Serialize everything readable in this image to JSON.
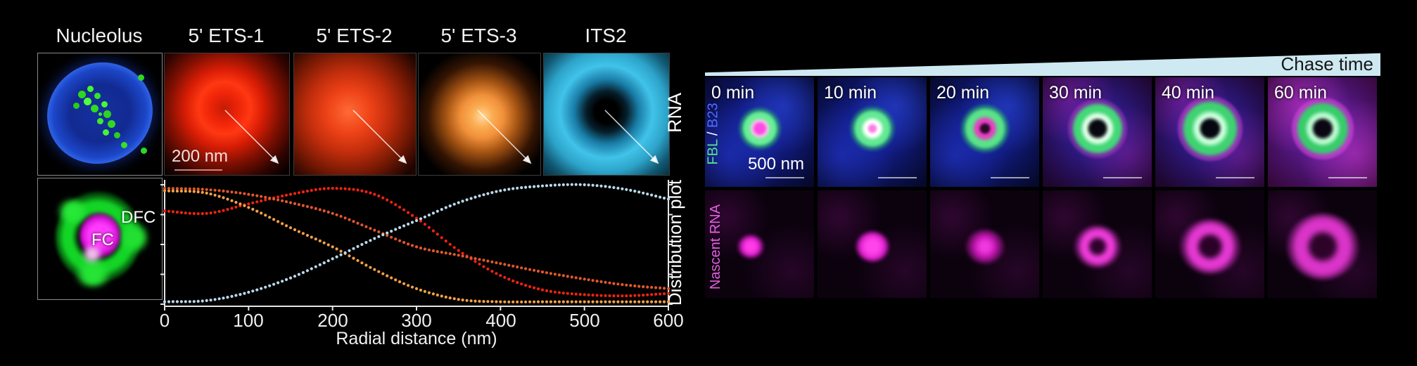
{
  "titles": [
    "Nucleolus",
    "5' ETS-1",
    "5' ETS-2",
    "5' ETS-3",
    "ITS2"
  ],
  "row_labels": {
    "rna": "RNA",
    "plot": "Distribution plot"
  },
  "left_panels": {
    "scale_bar_label": "200 nm",
    "dfc_label": "DFC",
    "fc_label": "FC"
  },
  "axis": {
    "xlabel": "Radial distance (nm)",
    "xticks": [
      "0",
      "100",
      "200",
      "300",
      "400",
      "500",
      "600"
    ]
  },
  "chase": {
    "header": "Chase time",
    "times": [
      "0 min",
      "10 min",
      "20 min",
      "30 min",
      "40 min",
      "60 min"
    ],
    "row1_label": {
      "part1": "FBL",
      "sep": " / ",
      "part2": "B23"
    },
    "row2_label": "Nascent RNA",
    "scale_bar_label": "500 nm",
    "colors": {
      "fbl": "#57e28e",
      "b23": "#4f6bff",
      "nascent": "#e45fe0",
      "wedge": "#cfe9f2"
    }
  },
  "chart_data": {
    "type": "scatter",
    "title": "Distribution plot",
    "xlabel": "Radial distance (nm)",
    "ylabel": "",
    "xlim": [
      0,
      600
    ],
    "ylim": [
      0,
      1
    ],
    "grid": false,
    "legend": false,
    "marker": "dot",
    "x": [
      0,
      50,
      100,
      150,
      200,
      250,
      300,
      350,
      400,
      450,
      500,
      550,
      600
    ],
    "series": [
      {
        "name": "5' ETS-1",
        "color": "#f3220f",
        "values": [
          0.78,
          0.76,
          0.84,
          0.92,
          0.97,
          0.92,
          0.72,
          0.45,
          0.24,
          0.12,
          0.08,
          0.07,
          0.09
        ]
      },
      {
        "name": "5' ETS-2",
        "color": "#e2572a",
        "values": [
          0.97,
          0.96,
          0.92,
          0.85,
          0.76,
          0.62,
          0.48,
          0.41,
          0.34,
          0.27,
          0.21,
          0.16,
          0.13
        ]
      },
      {
        "name": "5' ETS-3",
        "color": "#f5a246",
        "values": [
          0.95,
          0.93,
          0.81,
          0.64,
          0.48,
          0.29,
          0.13,
          0.04,
          0.02,
          0.02,
          0.02,
          0.02,
          0.02
        ]
      },
      {
        "name": "ITS2",
        "color": "#b9d9ea",
        "values": [
          0.02,
          0.03,
          0.1,
          0.22,
          0.38,
          0.55,
          0.7,
          0.85,
          0.95,
          0.99,
          1.0,
          0.96,
          0.88
        ]
      }
    ]
  }
}
